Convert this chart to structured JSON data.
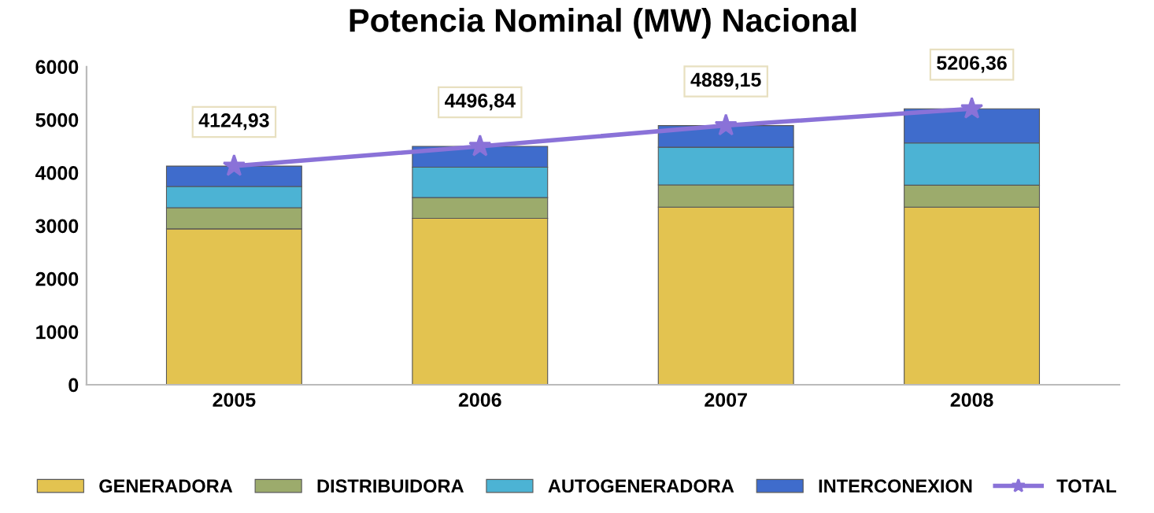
{
  "chart_data": {
    "type": "bar",
    "title": "Potencia Nominal (MW) Nacional",
    "categories": [
      "2005",
      "2006",
      "2007",
      "2008"
    ],
    "stacked": true,
    "ylim": [
      0,
      6000
    ],
    "yticks": [
      0,
      1000,
      2000,
      3000,
      4000,
      5000,
      6000
    ],
    "grid": false,
    "legend": "bottom",
    "series": [
      {
        "name": "GENERADORA",
        "color": "#e3c350",
        "values": [
          2940,
          3140,
          3350,
          3350
        ]
      },
      {
        "name": "DISTRIBUIDORA",
        "color": "#9cab6c",
        "values": [
          400,
          390,
          420,
          415
        ]
      },
      {
        "name": "AUTOGENERADORA",
        "color": "#4cb3d4",
        "values": [
          400,
          575,
          710,
          795
        ]
      },
      {
        "name": "INTERCONEXION",
        "color": "#3f6ccc",
        "values": [
          385,
          392,
          409,
          646
        ]
      },
      {
        "name": "TOTAL",
        "type": "line",
        "color": "#8a72d8",
        "marker": "star",
        "values": [
          4124.93,
          4496.84,
          4889.15,
          5206.36
        ],
        "value_labels": [
          "4124,93",
          "4496,84",
          "4889,15",
          "5206,36"
        ]
      }
    ]
  }
}
